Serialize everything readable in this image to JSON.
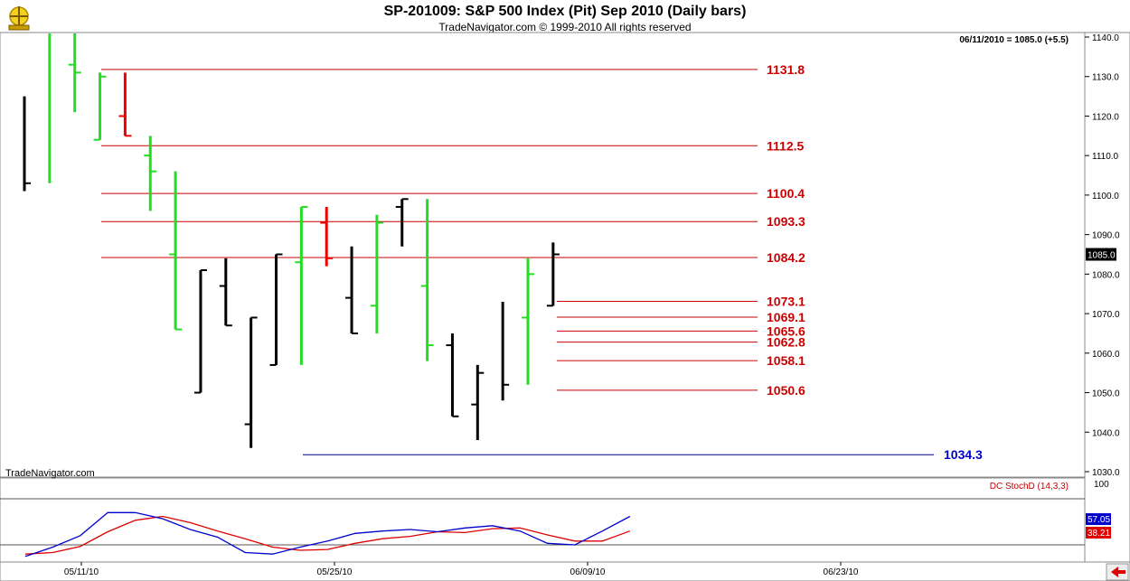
{
  "title": "SP-201009:  S&P 500 Index (Pit) Sep 2010  (Daily bars)",
  "subtitle": "TradeNavigator.com © 1999-2010 All rights reserved",
  "watermark": "TradeNavigator.com",
  "last_bar_info": "06/11/2010 = 1085.0 (+5.5)",
  "indicator_label": "DC StochD (14,3,3)",
  "colors": {
    "up_bar": "#22dd22",
    "down_bar": "#ee0000",
    "neutral_bar": "#000000",
    "level_line": "#cc0000",
    "support_line": "#000080",
    "support_label": "#0000cc",
    "stoch_k": "#0000cc",
    "stoch_d": "#dd0000"
  },
  "chart_data": [
    {
      "type": "ohlc",
      "ylim": [
        1028,
        1143
      ],
      "y_ticks": [
        1030,
        1040,
        1050,
        1060,
        1070,
        1080,
        1090,
        1100,
        1110,
        1120,
        1130,
        1140
      ],
      "x_labels": [
        "05/11/10",
        "05/25/10",
        "06/09/10",
        "06/23/10"
      ],
      "last_price": 1085.0,
      "bars": [
        {
          "h": 1125,
          "l": 1101,
          "o": null,
          "c": 1103,
          "color": "neutral"
        },
        {
          "h": 1143,
          "l": 1103,
          "o": null,
          "c": null,
          "color": "up"
        },
        {
          "h": 1143,
          "l": 1121,
          "o": 1133,
          "c": 1131,
          "color": "up"
        },
        {
          "h": 1131,
          "l": 1114,
          "o": 1114,
          "c": 1130,
          "color": "up"
        },
        {
          "h": 1131,
          "l": 1115,
          "o": 1120,
          "c": 1115,
          "color": "down"
        },
        {
          "h": 1115,
          "l": 1096,
          "o": 1110,
          "c": 1106,
          "color": "up"
        },
        {
          "h": 1106,
          "l": 1066,
          "o": 1085,
          "c": 1066,
          "color": "up"
        },
        {
          "h": 1081,
          "l": 1050,
          "o": 1050,
          "c": 1081,
          "color": "neutral"
        },
        {
          "h": 1084,
          "l": 1067,
          "o": 1077,
          "c": 1067,
          "color": "neutral"
        },
        {
          "h": 1069,
          "l": 1036,
          "o": 1042,
          "c": 1069,
          "color": "neutral"
        },
        {
          "h": 1085,
          "l": 1057,
          "o": 1057,
          "c": 1085,
          "color": "neutral"
        },
        {
          "h": 1097,
          "l": 1057,
          "o": 1083,
          "c": 1097,
          "color": "up"
        },
        {
          "h": 1097,
          "l": 1082,
          "o": 1093,
          "c": 1084,
          "color": "down"
        },
        {
          "h": 1087,
          "l": 1065,
          "o": 1074,
          "c": 1065,
          "color": "neutral"
        },
        {
          "h": 1095,
          "l": 1065,
          "o": 1072,
          "c": 1093,
          "color": "up"
        },
        {
          "h": 1099,
          "l": 1087,
          "o": 1097,
          "c": 1099,
          "color": "neutral"
        },
        {
          "h": 1099,
          "l": 1058,
          "o": 1077,
          "c": 1062,
          "color": "up"
        },
        {
          "h": 1065,
          "l": 1044,
          "o": 1062,
          "c": 1044,
          "color": "neutral"
        },
        {
          "h": 1057,
          "l": 1038,
          "o": 1047,
          "c": 1055,
          "color": "neutral"
        },
        {
          "h": 1073,
          "l": 1048,
          "o": null,
          "c": 1052,
          "color": "neutral"
        },
        {
          "h": 1084,
          "l": 1052,
          "o": 1069,
          "c": 1080,
          "color": "up"
        },
        {
          "h": 1088,
          "l": 1072,
          "o": 1072,
          "c": 1085,
          "color": "neutral"
        }
      ],
      "levels": [
        {
          "value": 1131.8,
          "label": "1131.8"
        },
        {
          "value": 1112.5,
          "label": "1112.5"
        },
        {
          "value": 1100.4,
          "label": "1100.4"
        },
        {
          "value": 1093.3,
          "label": "1093.3"
        },
        {
          "value": 1084.2,
          "label": "1084.2"
        },
        {
          "value": 1073.1,
          "label": "1073.1"
        },
        {
          "value": 1069.1,
          "label": "1069.1"
        },
        {
          "value": 1065.6,
          "label": "1065.6"
        },
        {
          "value": 1062.8,
          "label": "1062.8"
        },
        {
          "value": 1058.1,
          "label": "1058.1"
        },
        {
          "value": 1050.6,
          "label": "1050.6"
        }
      ],
      "support": {
        "value": 1034.3,
        "label": "1034.3"
      }
    },
    {
      "type": "line",
      "ylim": [
        0,
        100
      ],
      "y_ticks": [
        100
      ],
      "reference_lines": [
        80,
        20
      ],
      "series": [
        {
          "name": "K",
          "label": "57.05",
          "values": [
            5,
            17,
            32,
            62,
            62,
            54,
            40,
            30,
            10,
            8,
            17,
            25,
            35,
            38,
            40,
            37,
            42,
            45,
            38,
            22,
            20,
            38,
            57
          ]
        },
        {
          "name": "D",
          "label": "38.21",
          "values": [
            8,
            10,
            18,
            37,
            52,
            57,
            49,
            38,
            28,
            17,
            13,
            14,
            22,
            28,
            31,
            37,
            36,
            41,
            42,
            33,
            25,
            25,
            38
          ]
        }
      ]
    }
  ]
}
